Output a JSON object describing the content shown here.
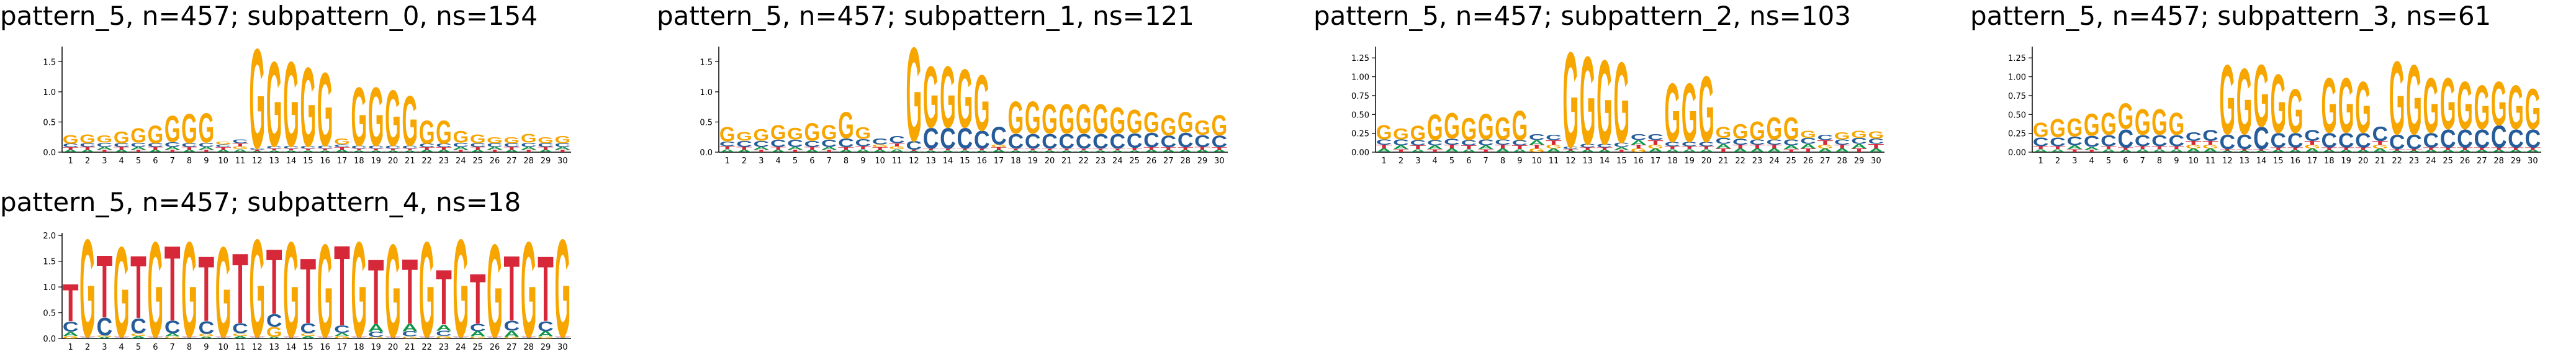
{
  "chart_data": [
    {
      "type": "logo",
      "title": "pattern_5, n=457; subpattern_0, ns=154",
      "categories": [
        "1",
        "2",
        "3",
        "4",
        "5",
        "6",
        "7",
        "8",
        "9",
        "10",
        "11",
        "12",
        "13",
        "14",
        "15",
        "16",
        "17",
        "18",
        "19",
        "20",
        "21",
        "22",
        "23",
        "24",
        "25",
        "26",
        "27",
        "28",
        "29",
        "30"
      ],
      "ylim": [
        0,
        1.75
      ],
      "yticks": [
        {
          "value": 0,
          "label": "0.0"
        },
        {
          "value": 0.5,
          "label": "0.5"
        },
        {
          "value": 1,
          "label": "1.0"
        },
        {
          "value": 1.5,
          "label": "1.5"
        }
      ],
      "series": [
        {
          "name": "A",
          "color": "#109648",
          "values": [
            0.04,
            0.04,
            0.05,
            0.04,
            0.05,
            0.04,
            0.05,
            0.04,
            0.05,
            0.04,
            0.05,
            0.02,
            0.03,
            0.03,
            0.03,
            0.03,
            0.04,
            0.03,
            0.03,
            0.03,
            0.03,
            0.04,
            0.04,
            0.05,
            0.04,
            0.05,
            0.04,
            0.05,
            0.04,
            0.05
          ]
        },
        {
          "name": "C",
          "color": "#255c99",
          "values": [
            0.06,
            0.06,
            0.07,
            0.06,
            0.07,
            0.06,
            0.08,
            0.06,
            0.07,
            0.05,
            0.06,
            0.03,
            0.04,
            0.04,
            0.04,
            0.05,
            0.05,
            0.05,
            0.05,
            0.05,
            0.05,
            0.06,
            0.06,
            0.07,
            0.06,
            0.06,
            0.06,
            0.07,
            0.06,
            0.06
          ]
        },
        {
          "name": "G",
          "color": "#f7a600",
          "values": [
            0.15,
            0.15,
            0.12,
            0.2,
            0.25,
            0.3,
            0.45,
            0.5,
            0.5,
            0.05,
            0.05,
            1.7,
            1.45,
            1.45,
            1.35,
            1.25,
            0.1,
            1.0,
            1.0,
            0.95,
            0.85,
            0.4,
            0.4,
            0.2,
            0.15,
            0.1,
            0.1,
            0.15,
            0.1,
            0.12
          ]
        },
        {
          "name": "T",
          "color": "#d62839",
          "values": [
            0.04,
            0.05,
            0.04,
            0.05,
            0.04,
            0.05,
            0.04,
            0.05,
            0.04,
            0.04,
            0.05,
            0.02,
            0.03,
            0.03,
            0.03,
            0.03,
            0.04,
            0.03,
            0.03,
            0.03,
            0.03,
            0.04,
            0.04,
            0.04,
            0.05,
            0.04,
            0.05,
            0.04,
            0.05,
            0.04
          ]
        }
      ]
    },
    {
      "type": "logo",
      "title": "pattern_5, n=457; subpattern_1, ns=121",
      "categories": [
        "1",
        "2",
        "3",
        "4",
        "5",
        "6",
        "7",
        "8",
        "9",
        "10",
        "11",
        "12",
        "13",
        "14",
        "15",
        "16",
        "17",
        "18",
        "19",
        "20",
        "21",
        "22",
        "23",
        "24",
        "25",
        "26",
        "27",
        "28",
        "29",
        "30"
      ],
      "ylim": [
        0,
        1.75
      ],
      "yticks": [
        {
          "value": 0,
          "label": "0.0"
        },
        {
          "value": 0.5,
          "label": "0.5"
        },
        {
          "value": 1,
          "label": "1.0"
        },
        {
          "value": 1.5,
          "label": "1.5"
        }
      ],
      "series": [
        {
          "name": "A",
          "color": "#109648",
          "values": [
            0.05,
            0.04,
            0.05,
            0.04,
            0.05,
            0.04,
            0.05,
            0.04,
            0.05,
            0.04,
            0.05,
            0.02,
            0.03,
            0.03,
            0.03,
            0.03,
            0.04,
            0.03,
            0.03,
            0.03,
            0.03,
            0.03,
            0.03,
            0.03,
            0.03,
            0.04,
            0.04,
            0.04,
            0.04,
            0.04
          ]
        },
        {
          "name": "C",
          "color": "#255c99",
          "values": [
            0.08,
            0.1,
            0.1,
            0.12,
            0.12,
            0.1,
            0.12,
            0.15,
            0.12,
            0.1,
            0.12,
            0.15,
            0.35,
            0.35,
            0.35,
            0.3,
            0.3,
            0.25,
            0.25,
            0.25,
            0.25,
            0.25,
            0.25,
            0.25,
            0.25,
            0.25,
            0.2,
            0.25,
            0.2,
            0.2
          ]
        },
        {
          "name": "G",
          "color": "#f7a600",
          "values": [
            0.25,
            0.15,
            0.2,
            0.25,
            0.2,
            0.3,
            0.25,
            0.45,
            0.2,
            0.05,
            0.05,
            1.6,
            1.05,
            1.05,
            1.0,
            0.95,
            0.05,
            0.55,
            0.55,
            0.5,
            0.5,
            0.5,
            0.5,
            0.45,
            0.4,
            0.35,
            0.3,
            0.35,
            0.25,
            0.35
          ]
        },
        {
          "name": "T",
          "color": "#d62839",
          "values": [
            0.05,
            0.05,
            0.04,
            0.05,
            0.04,
            0.05,
            0.04,
            0.04,
            0.05,
            0.04,
            0.05,
            0.02,
            0.03,
            0.03,
            0.03,
            0.03,
            0.04,
            0.03,
            0.03,
            0.03,
            0.03,
            0.03,
            0.03,
            0.03,
            0.04,
            0.04,
            0.04,
            0.04,
            0.05,
            0.04
          ]
        }
      ]
    },
    {
      "type": "logo",
      "title": "pattern_5, n=457; subpattern_2, ns=103",
      "categories": [
        "1",
        "2",
        "3",
        "4",
        "5",
        "6",
        "7",
        "8",
        "9",
        "10",
        "11",
        "12",
        "13",
        "14",
        "15",
        "16",
        "17",
        "18",
        "19",
        "20",
        "21",
        "22",
        "23",
        "24",
        "25",
        "26",
        "27",
        "28",
        "29",
        "30"
      ],
      "ylim": [
        0,
        1.4
      ],
      "yticks": [
        {
          "value": 0,
          "label": "0.00"
        },
        {
          "value": 0.25,
          "label": "0.25"
        },
        {
          "value": 0.5,
          "label": "0.50"
        },
        {
          "value": 0.75,
          "label": "0.75"
        },
        {
          "value": 1,
          "label": "1.00"
        },
        {
          "value": 1.25,
          "label": "1.25"
        }
      ],
      "series": [
        {
          "name": "A",
          "color": "#109648",
          "values": [
            0.05,
            0.05,
            0.04,
            0.05,
            0.05,
            0.04,
            0.05,
            0.05,
            0.04,
            0.06,
            0.05,
            0.02,
            0.03,
            0.03,
            0.04,
            0.06,
            0.05,
            0.04,
            0.04,
            0.04,
            0.06,
            0.05,
            0.05,
            0.05,
            0.05,
            0.06,
            0.05,
            0.05,
            0.06,
            0.05
          ]
        },
        {
          "name": "C",
          "color": "#255c99",
          "values": [
            0.07,
            0.08,
            0.07,
            0.07,
            0.08,
            0.07,
            0.08,
            0.07,
            0.07,
            0.08,
            0.07,
            0.03,
            0.05,
            0.05,
            0.06,
            0.08,
            0.08,
            0.06,
            0.06,
            0.06,
            0.08,
            0.08,
            0.07,
            0.07,
            0.08,
            0.08,
            0.07,
            0.07,
            0.08,
            0.07
          ]
        },
        {
          "name": "G",
          "color": "#f7a600",
          "values": [
            0.2,
            0.15,
            0.2,
            0.35,
            0.35,
            0.3,
            0.35,
            0.3,
            0.4,
            0.05,
            0.05,
            1.3,
            1.2,
            1.15,
            1.1,
            0.05,
            0.05,
            0.8,
            0.8,
            0.9,
            0.15,
            0.2,
            0.25,
            0.3,
            0.3,
            0.1,
            0.05,
            0.1,
            0.1,
            0.1
          ]
        },
        {
          "name": "T",
          "color": "#d62839",
          "values": [
            0.05,
            0.04,
            0.05,
            0.04,
            0.05,
            0.05,
            0.04,
            0.05,
            0.05,
            0.05,
            0.06,
            0.02,
            0.03,
            0.03,
            0.03,
            0.05,
            0.06,
            0.04,
            0.04,
            0.04,
            0.05,
            0.05,
            0.05,
            0.05,
            0.04,
            0.05,
            0.06,
            0.05,
            0.05,
            0.06
          ]
        }
      ]
    },
    {
      "type": "logo",
      "title": "pattern_5, n=457; subpattern_3, ns=61",
      "categories": [
        "1",
        "2",
        "3",
        "4",
        "5",
        "6",
        "7",
        "8",
        "9",
        "10",
        "11",
        "12",
        "13",
        "14",
        "15",
        "16",
        "17",
        "18",
        "19",
        "20",
        "21",
        "22",
        "23",
        "24",
        "25",
        "26",
        "27",
        "28",
        "29",
        "30"
      ],
      "ylim": [
        0,
        1.4
      ],
      "yticks": [
        {
          "value": 0,
          "label": "0.00"
        },
        {
          "value": 0.25,
          "label": "0.25"
        },
        {
          "value": 0.5,
          "label": "0.50"
        },
        {
          "value": 0.75,
          "label": "0.75"
        },
        {
          "value": 1,
          "label": "1.00"
        },
        {
          "value": 1.25,
          "label": "1.25"
        }
      ],
      "series": [
        {
          "name": "A",
          "color": "#109648",
          "values": [
            0.04,
            0.04,
            0.05,
            0.04,
            0.04,
            0.03,
            0.04,
            0.04,
            0.04,
            0.05,
            0.05,
            0.02,
            0.02,
            0.02,
            0.03,
            0.03,
            0.05,
            0.03,
            0.03,
            0.03,
            0.05,
            0.02,
            0.02,
            0.03,
            0.03,
            0.03,
            0.03,
            0.03,
            0.03,
            0.03
          ]
        },
        {
          "name": "C",
          "color": "#255c99",
          "values": [
            0.12,
            0.12,
            0.12,
            0.15,
            0.15,
            0.25,
            0.15,
            0.15,
            0.15,
            0.12,
            0.15,
            0.2,
            0.2,
            0.3,
            0.2,
            0.2,
            0.15,
            0.2,
            0.2,
            0.2,
            0.2,
            0.2,
            0.2,
            0.2,
            0.25,
            0.25,
            0.25,
            0.3,
            0.25,
            0.25
          ]
        },
        {
          "name": "G",
          "color": "#f7a600",
          "values": [
            0.2,
            0.25,
            0.25,
            0.3,
            0.3,
            0.35,
            0.35,
            0.35,
            0.3,
            0.05,
            0.05,
            0.95,
            0.9,
            0.85,
            0.8,
            0.6,
            0.05,
            0.75,
            0.75,
            0.7,
            0.05,
            1.0,
            0.95,
            0.75,
            0.7,
            0.65,
            0.6,
            0.6,
            0.6,
            0.55
          ]
        },
        {
          "name": "T",
          "color": "#d62839",
          "values": [
            0.04,
            0.04,
            0.04,
            0.03,
            0.04,
            0.03,
            0.04,
            0.04,
            0.04,
            0.05,
            0.05,
            0.02,
            0.02,
            0.02,
            0.03,
            0.03,
            0.05,
            0.03,
            0.03,
            0.03,
            0.05,
            0.02,
            0.02,
            0.03,
            0.03,
            0.03,
            0.03,
            0.03,
            0.03,
            0.03
          ]
        }
      ]
    },
    {
      "type": "logo",
      "title": "pattern_5, n=457; subpattern_4, ns=18",
      "categories": [
        "1",
        "2",
        "3",
        "4",
        "5",
        "6",
        "7",
        "8",
        "9",
        "10",
        "11",
        "12",
        "13",
        "14",
        "15",
        "16",
        "17",
        "18",
        "19",
        "20",
        "21",
        "22",
        "23",
        "24",
        "25",
        "26",
        "27",
        "28",
        "29",
        "30"
      ],
      "ylim": [
        0,
        2.05
      ],
      "yticks": [
        {
          "value": 0,
          "label": "0.0"
        },
        {
          "value": 0.5,
          "label": "0.5"
        },
        {
          "value": 1,
          "label": "1.0"
        },
        {
          "value": 1.5,
          "label": "1.5"
        },
        {
          "value": 2,
          "label": "2.0"
        }
      ],
      "series": [
        {
          "name": "A",
          "color": "#109648",
          "values": [
            0.08,
            0.01,
            0.03,
            0.01,
            0.05,
            0.01,
            0.06,
            0.01,
            0.04,
            0.01,
            0.05,
            0.01,
            0.03,
            0.01,
            0.05,
            0.01,
            0.06,
            0.01,
            0.15,
            0.01,
            0.15,
            0.01,
            0.12,
            0.01,
            0.1,
            0.01,
            0.12,
            0.01,
            0.1,
            0.01
          ]
        },
        {
          "name": "C",
          "color": "#255c99",
          "values": [
            0.2,
            0.01,
            0.35,
            0.01,
            0.3,
            0.01,
            0.25,
            0.01,
            0.25,
            0.01,
            0.2,
            0.01,
            0.25,
            0.01,
            0.2,
            0.01,
            0.15,
            0.01,
            0.1,
            0.01,
            0.1,
            0.01,
            0.1,
            0.01,
            0.15,
            0.01,
            0.2,
            0.01,
            0.2,
            0.01
          ]
        },
        {
          "name": "G",
          "color": "#f7a600",
          "values": [
            0.05,
            1.95,
            0.03,
            1.8,
            0.05,
            1.9,
            0.04,
            1.9,
            0.05,
            1.8,
            0.05,
            1.95,
            0.2,
            1.9,
            0.05,
            1.85,
            0.05,
            1.9,
            0.03,
            1.85,
            0.04,
            1.9,
            0.05,
            1.95,
            0.04,
            1.85,
            0.03,
            1.9,
            0.04,
            1.95
          ]
        },
        {
          "name": "T",
          "color": "#d62839",
          "values": [
            0.75,
            0.02,
            1.25,
            0.02,
            1.25,
            0.02,
            1.5,
            0.02,
            1.3,
            0.02,
            1.4,
            0.02,
            1.3,
            0.02,
            1.3,
            0.02,
            1.6,
            0.02,
            1.3,
            0.02,
            1.3,
            0.02,
            1.1,
            0.02,
            1.0,
            0.02,
            1.3,
            0.02,
            1.3,
            0.02
          ]
        }
      ]
    }
  ]
}
